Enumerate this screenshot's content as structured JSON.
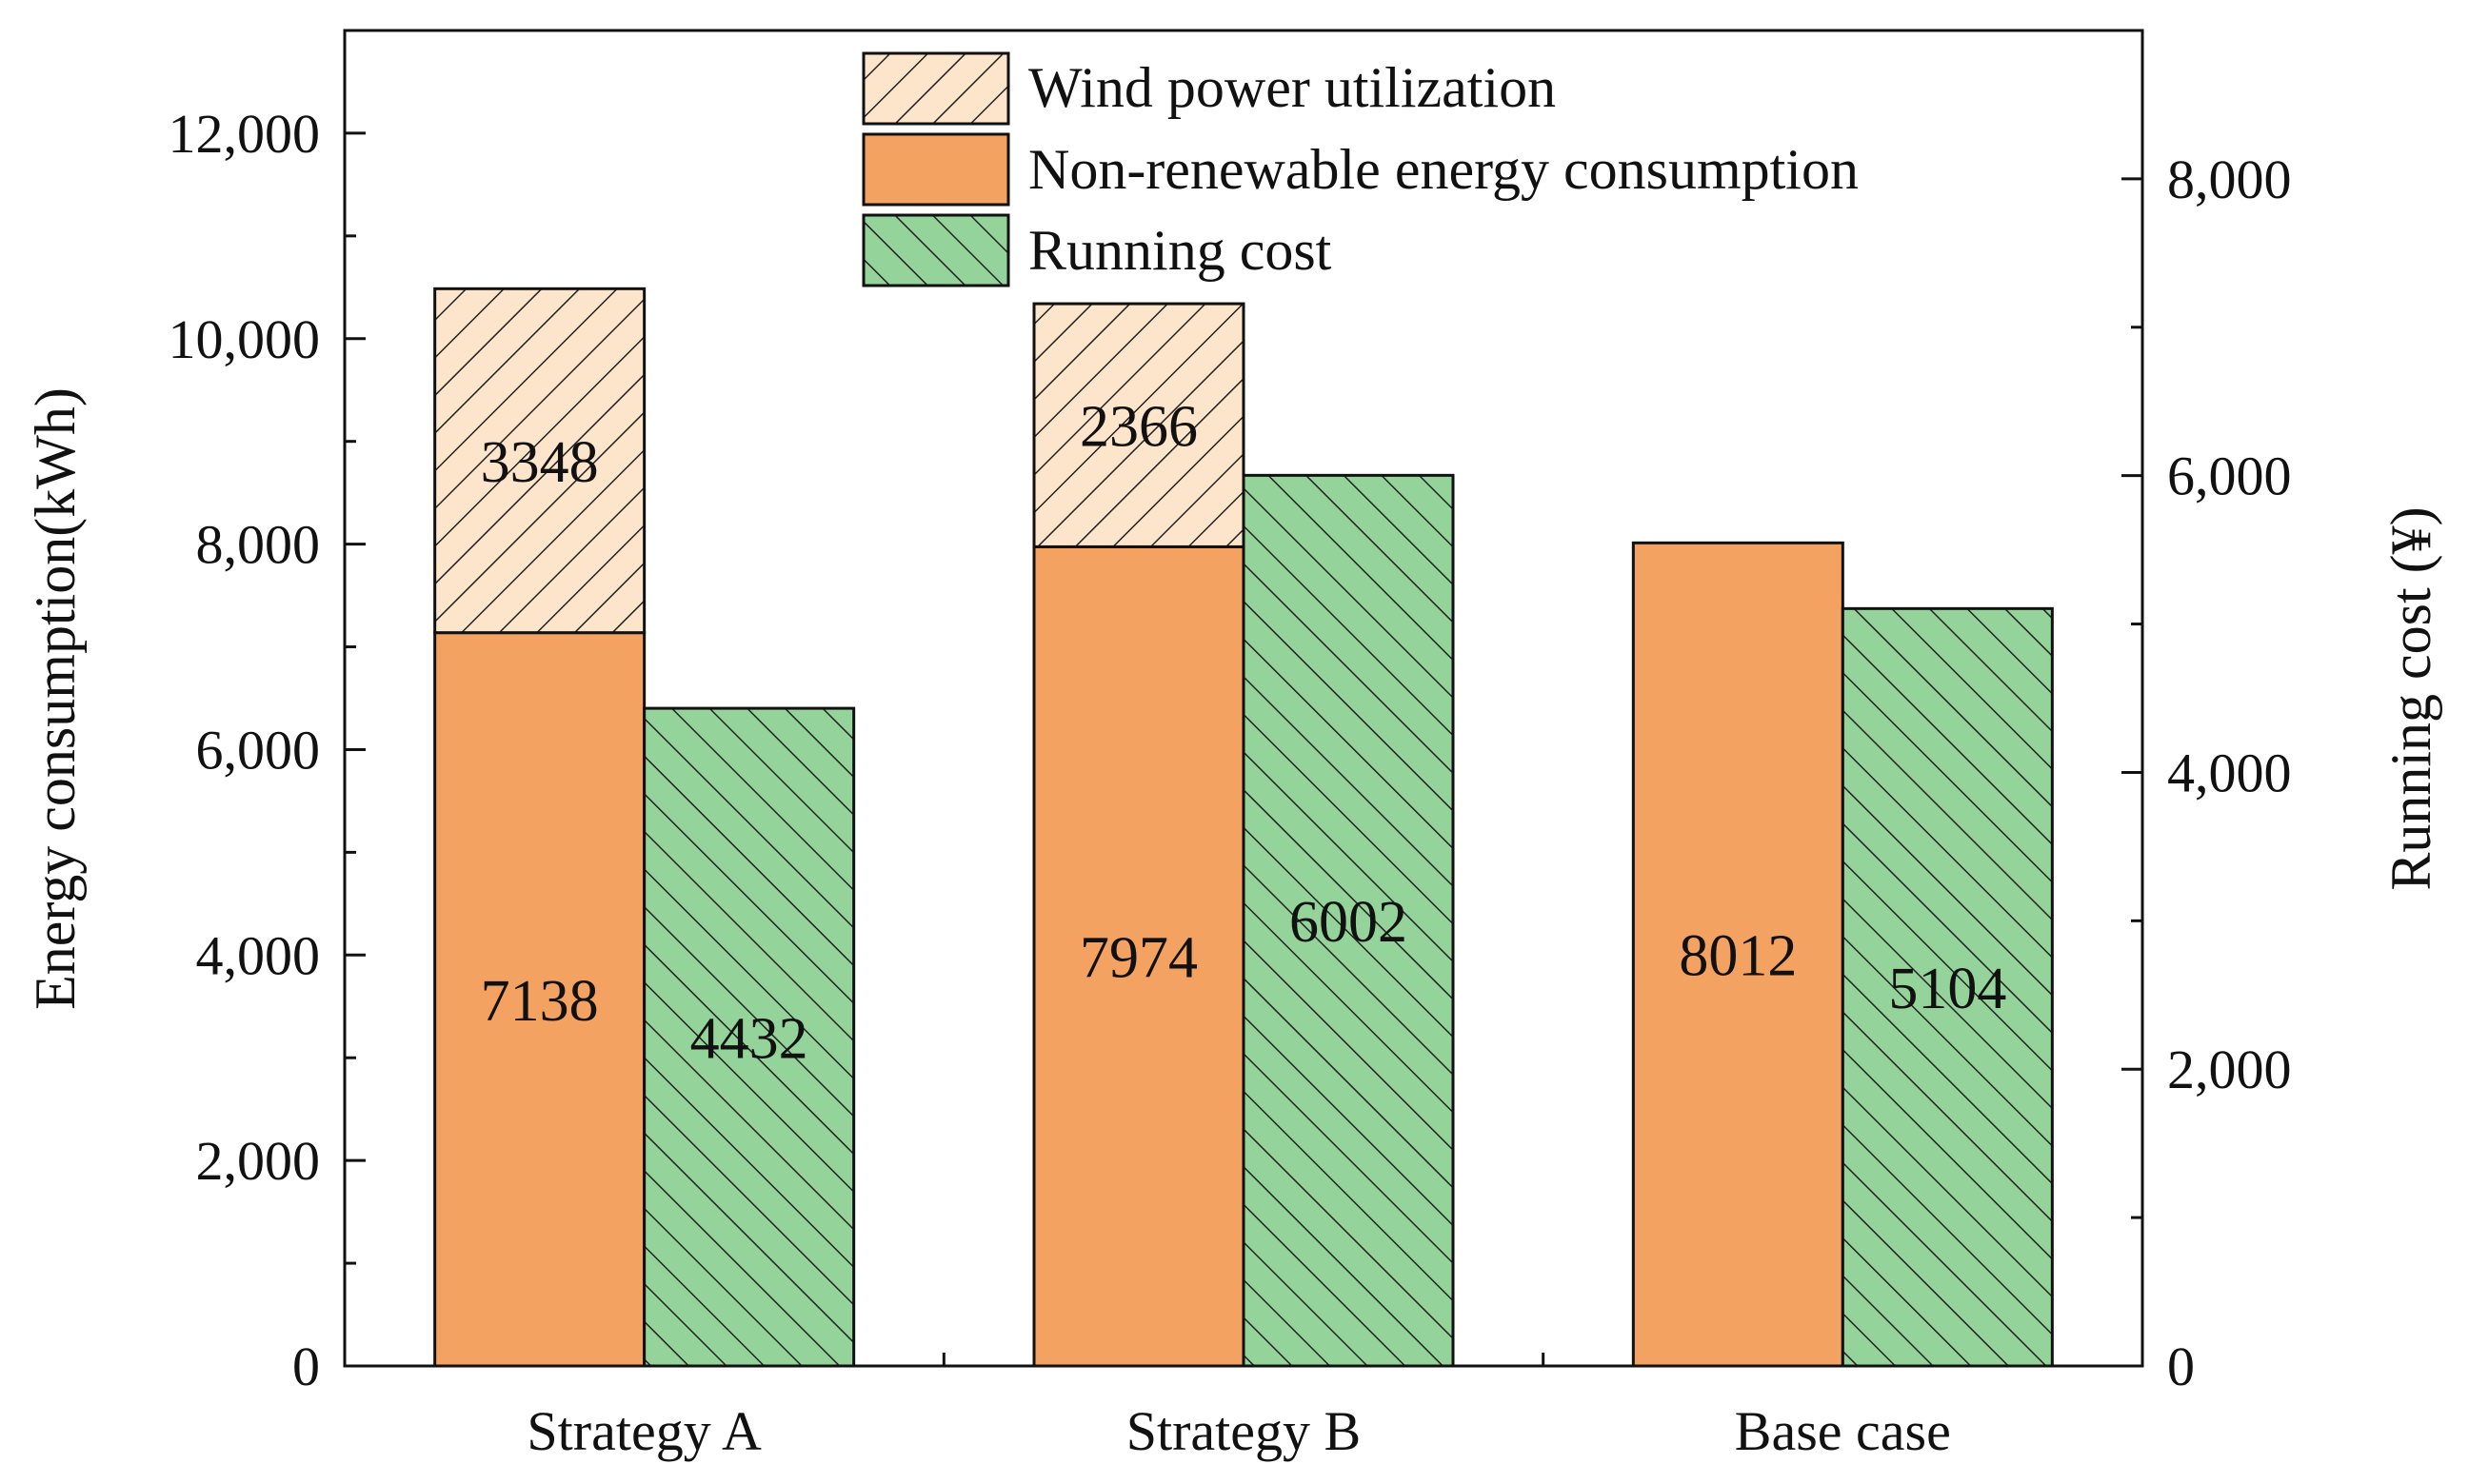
{
  "chart_data": {
    "type": "bar",
    "title": "",
    "categories": [
      "Strategy A",
      "Strategy B",
      "Base case"
    ],
    "left_axis": {
      "label": "Energy consumption(kWh)",
      "ylim": [
        0,
        13000
      ],
      "ticks": [
        0,
        2000,
        4000,
        6000,
        8000,
        10000,
        12000
      ],
      "tick_labels": [
        "0",
        "2,000",
        "4,000",
        "6,000",
        "8,000",
        "10,000",
        "12,000"
      ]
    },
    "right_axis": {
      "label": "Running cost (¥)",
      "ylim": [
        0,
        9000
      ],
      "ticks": [
        0,
        2000,
        4000,
        6000,
        8000
      ],
      "tick_labels": [
        "0",
        "2,000",
        "4,000",
        "6,000",
        "8,000"
      ]
    },
    "series": [
      {
        "name": "Non-renewable energy consumption",
        "axis": "left",
        "stack": "energy",
        "values": [
          7138,
          7974,
          8012
        ],
        "labels": [
          "7138",
          "7974",
          "8012"
        ],
        "color": "#f4a261",
        "pattern": "none"
      },
      {
        "name": "Wind power utilization",
        "axis": "left",
        "stack": "energy",
        "values": [
          3348,
          2366,
          0
        ],
        "labels": [
          "3348",
          "2366",
          ""
        ],
        "color": "#fde5cc",
        "pattern": "forward-hatch"
      },
      {
        "name": "Running cost",
        "axis": "right",
        "stack": "cost",
        "values": [
          4432,
          6002,
          5104
        ],
        "labels": [
          "4432",
          "6002",
          "5104"
        ],
        "color": "#94d49a",
        "pattern": "back-hatch"
      }
    ],
    "legend": {
      "position": "top-center",
      "entries": [
        "Wind power utilization",
        "Non-renewable energy consumption",
        "Running cost"
      ]
    }
  }
}
